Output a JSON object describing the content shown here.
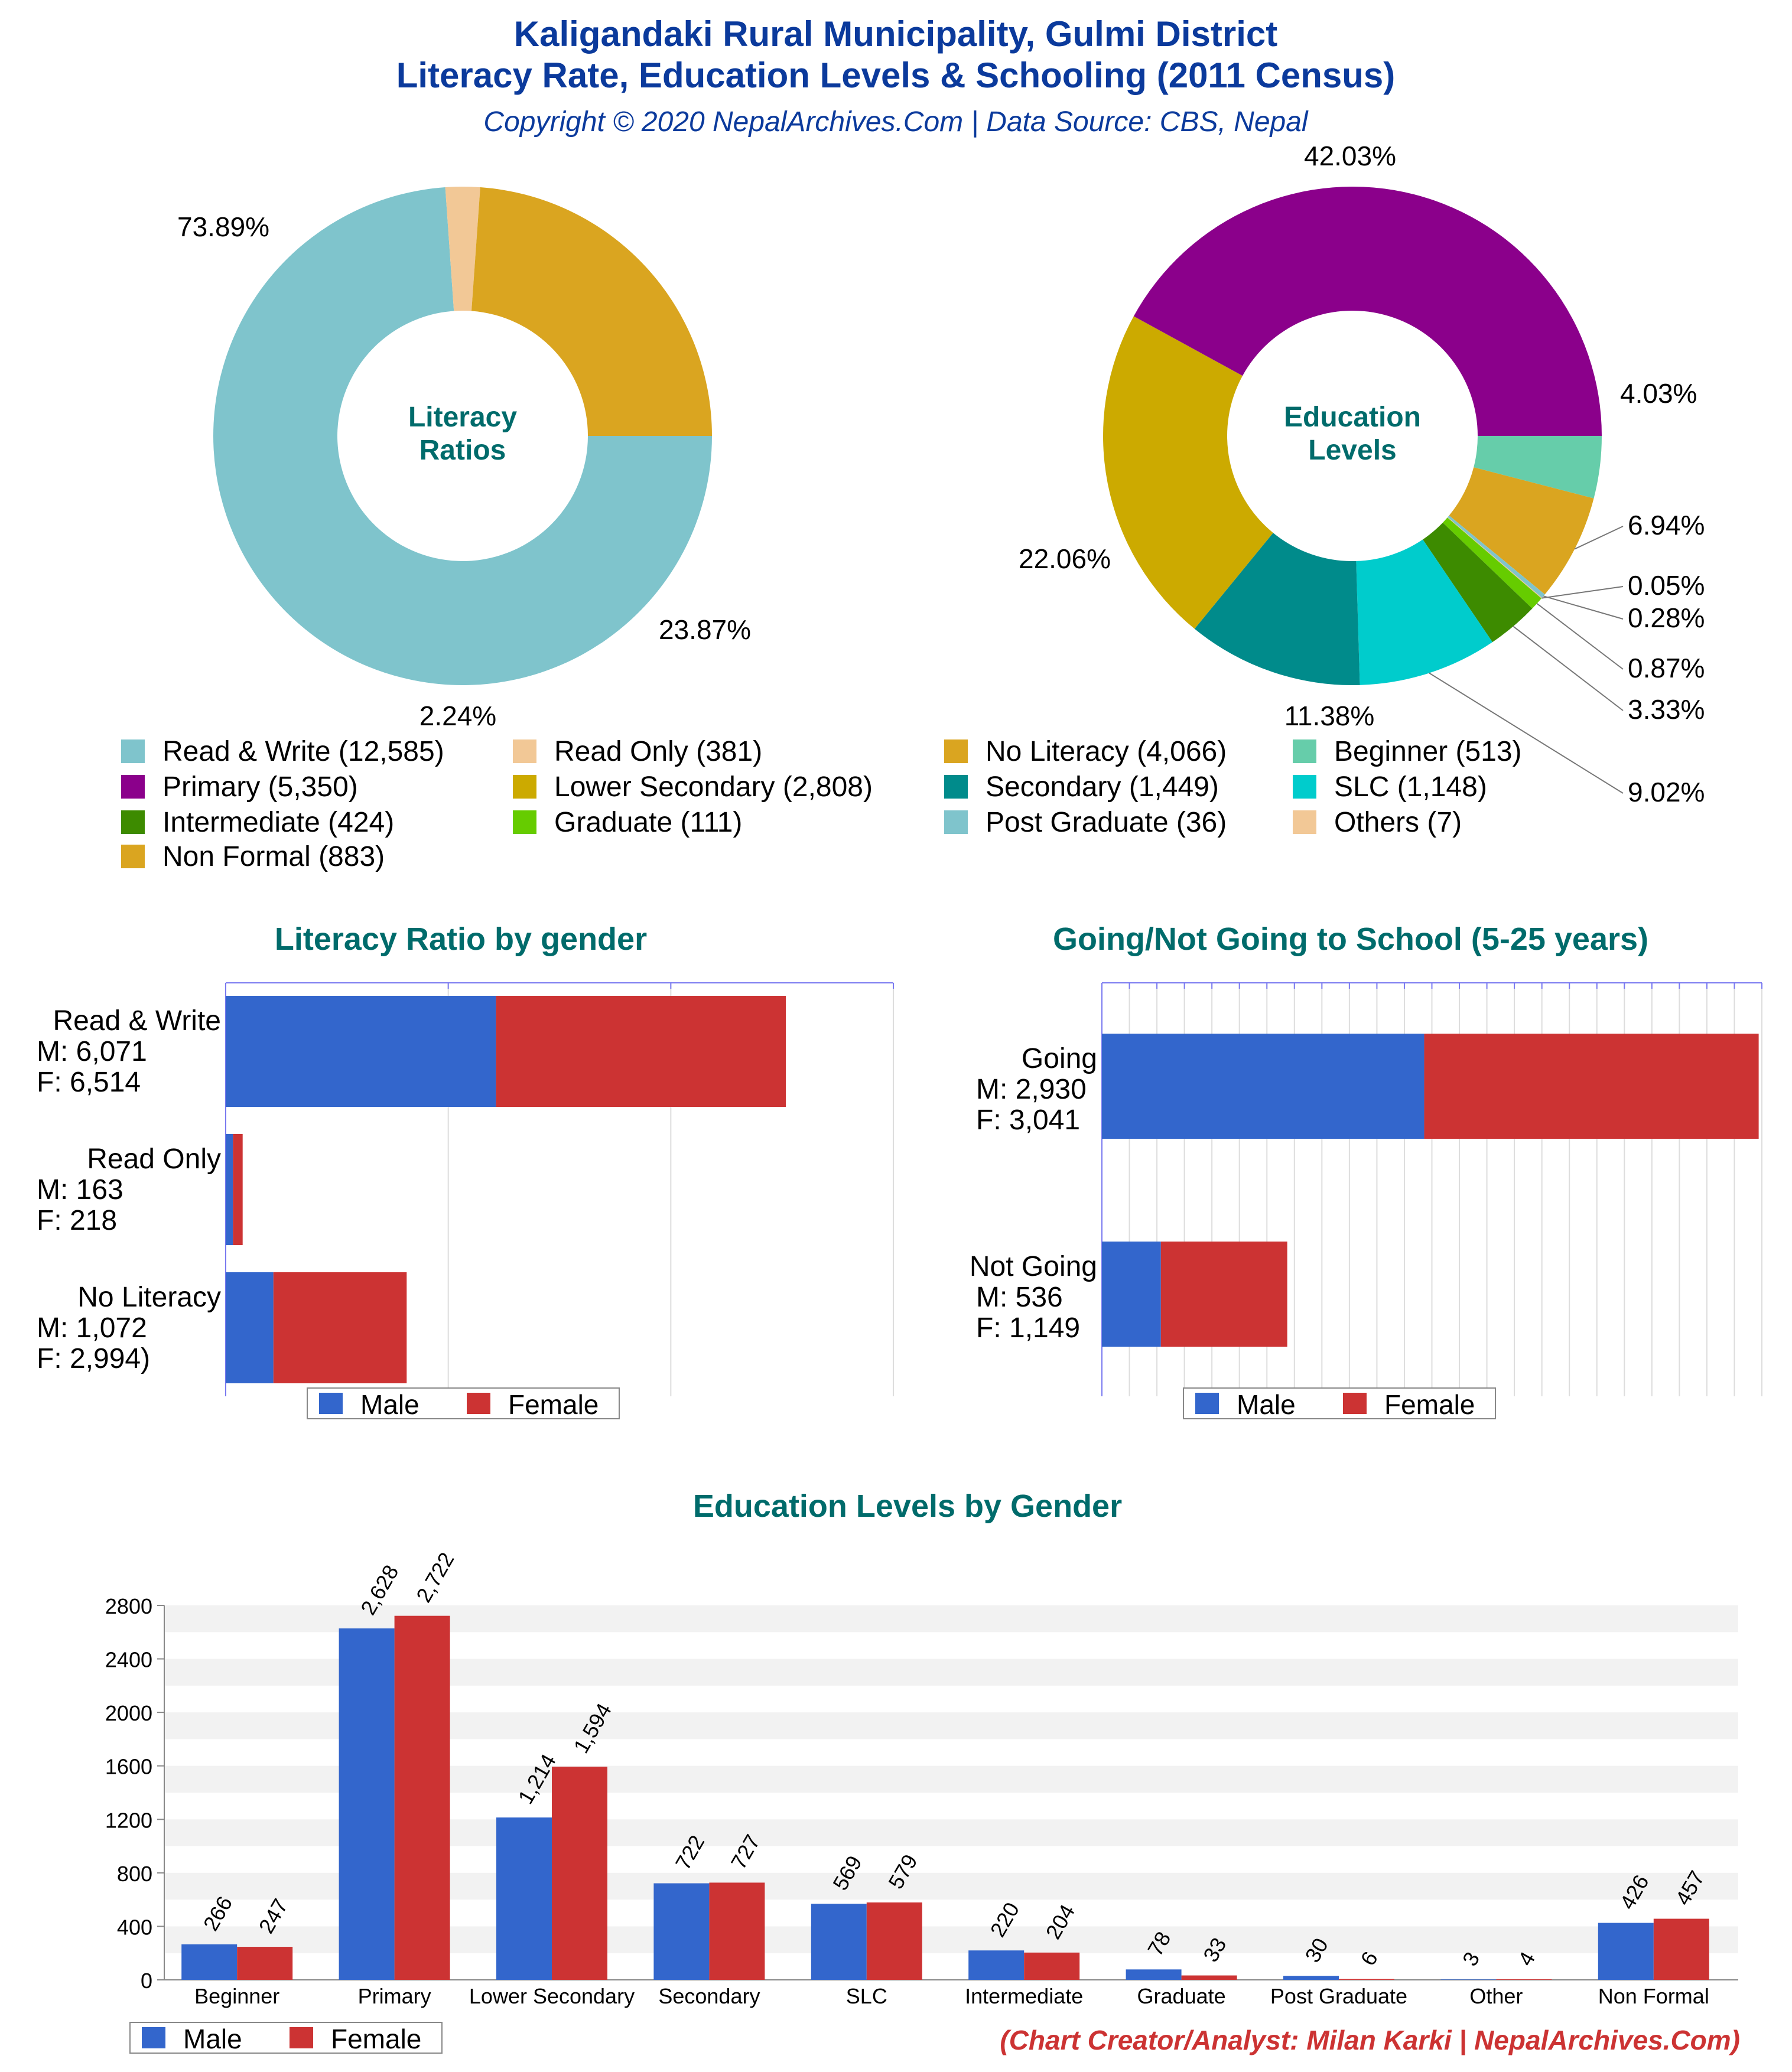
{
  "header": {
    "title_line1": "Kaligandaki Rural Municipality, Gulmi District",
    "title_line2": "Literacy Rate, Education Levels & Schooling (2011 Census)",
    "subtitle": "Copyright © 2020 NepalArchives.Com | Data Source: CBS, Nepal"
  },
  "footer": {
    "credit": "(Chart Creator/Analyst: Milan Karki | NepalArchives.Com)"
  },
  "colors": {
    "title_blue": "#0b3a9c",
    "section_teal": "#006b6b",
    "male": "#3366cc",
    "female": "#cc3333",
    "credit_red": "#cc3333"
  },
  "chart_data": [
    {
      "id": "literacy-donut",
      "type": "pie",
      "title": "",
      "center_label": [
        "Literacy",
        "Ratios"
      ],
      "slices": [
        {
          "label": "Read & Write",
          "value": 12585,
          "percent_label": "73.89%",
          "color": "#7fc4cc"
        },
        {
          "label": "Read Only",
          "value": 381,
          "percent_label": "2.24%",
          "color": "#f2c896"
        },
        {
          "label": "No Literacy",
          "value": 4066,
          "percent_label": "23.87%",
          "color": "#daa520"
        }
      ]
    },
    {
      "id": "education-donut",
      "type": "pie",
      "title": "",
      "center_label": [
        "Education",
        "Levels"
      ],
      "slices": [
        {
          "label": "Beginner",
          "value": 513,
          "percent_label": "4.03%",
          "color": "#66cdaa"
        },
        {
          "label": "Non Formal",
          "value": 883,
          "percent_label": "6.94%",
          "color": "#daa520"
        },
        {
          "label": "Post Graduate",
          "value": 36,
          "percent_label": "0.28%",
          "color": "#7fc4cc"
        },
        {
          "label": "Others",
          "value": 7,
          "percent_label": "0.05%",
          "color": "#f2c896"
        },
        {
          "label": "Graduate",
          "value": 111,
          "percent_label": "0.87%",
          "color": "#66cc00"
        },
        {
          "label": "Intermediate",
          "value": 424,
          "percent_label": "3.33%",
          "color": "#3d8b00"
        },
        {
          "label": "SLC",
          "value": 1148,
          "percent_label": "9.02%",
          "color": "#00cccc"
        },
        {
          "label": "Secondary",
          "value": 1449,
          "percent_label": "11.38%",
          "color": "#008b8b"
        },
        {
          "label": "Lower Secondary",
          "value": 2808,
          "percent_label": "22.06%",
          "color": "#ccaa00"
        },
        {
          "label": "Primary",
          "value": 5350,
          "percent_label": "42.03%",
          "color": "#8b008b"
        }
      ]
    },
    {
      "id": "literacy-by-gender",
      "type": "bar",
      "orientation": "horizontal",
      "stacked": true,
      "title": "Literacy Ratio by gender",
      "categories": [
        {
          "label": [
            "Read & Write",
            "M: 6,071",
            "F: 6,514"
          ],
          "male": 6071,
          "female": 6514
        },
        {
          "label": [
            "Read Only",
            "M: 163",
            "F: 218"
          ],
          "male": 163,
          "female": 218
        },
        {
          "label": [
            "No Literacy",
            "M: 1,072",
            "F: 2,994)"
          ],
          "male": 1072,
          "female": 2994
        }
      ],
      "xlim": [
        0,
        15000
      ],
      "legend": [
        "Male",
        "Female"
      ]
    },
    {
      "id": "schooling",
      "type": "bar",
      "orientation": "horizontal",
      "stacked": true,
      "title": "Going/Not Going to School (5-25 years)",
      "categories": [
        {
          "label": [
            "Going",
            "M: 2,930",
            "F: 3,041"
          ],
          "male": 2930,
          "female": 3041
        },
        {
          "label": [
            "Not Going",
            "M: 536",
            "F: 1,149"
          ],
          "male": 536,
          "female": 1149
        }
      ],
      "xlim": [
        0,
        6000
      ],
      "legend": [
        "Male",
        "Female"
      ]
    },
    {
      "id": "education-by-gender",
      "type": "bar",
      "title": "Education Levels by Gender",
      "categories": [
        "Beginner",
        "Primary",
        "Lower Secondary",
        "Secondary",
        "SLC",
        "Intermediate",
        "Graduate",
        "Post Graduate",
        "Other",
        "Non Formal"
      ],
      "series": [
        {
          "name": "Male",
          "values": [
            266,
            2628,
            1214,
            722,
            569,
            220,
            78,
            30,
            3,
            426
          ],
          "labels": [
            "266",
            "2,628",
            "1,214",
            "722",
            "569",
            "220",
            "78",
            "30",
            "3",
            "426"
          ]
        },
        {
          "name": "Female",
          "values": [
            247,
            2722,
            1594,
            727,
            579,
            204,
            33,
            6,
            4,
            457
          ],
          "labels": [
            "247",
            "2,722",
            "1,594",
            "727",
            "579",
            "204",
            "33",
            "6",
            "4",
            "457"
          ]
        }
      ],
      "yticks": [
        "0",
        "400",
        "800",
        "1200",
        "1600",
        "2000",
        "2400",
        "2800"
      ],
      "ylim": [
        0,
        2800
      ],
      "legend": [
        "Male",
        "Female"
      ]
    }
  ],
  "legend_donuts": [
    "Read & Write (12,585)",
    "Read Only (381)",
    "No Literacy (4,066)",
    "Beginner (513)",
    "Primary (5,350)",
    "Lower Secondary (2,808)",
    "Secondary (1,449)",
    "SLC (1,148)",
    "Intermediate (424)",
    "Graduate (111)",
    "Post Graduate (36)",
    "Others (7)",
    "Non Formal (883)"
  ],
  "legend_donut_colors": [
    "#7fc4cc",
    "#f2c896",
    "#daa520",
    "#66cdaa",
    "#8b008b",
    "#ccaa00",
    "#008b8b",
    "#00cccc",
    "#3d8b00",
    "#66cc00",
    "#7fc4cc",
    "#f2c896",
    "#daa520"
  ]
}
